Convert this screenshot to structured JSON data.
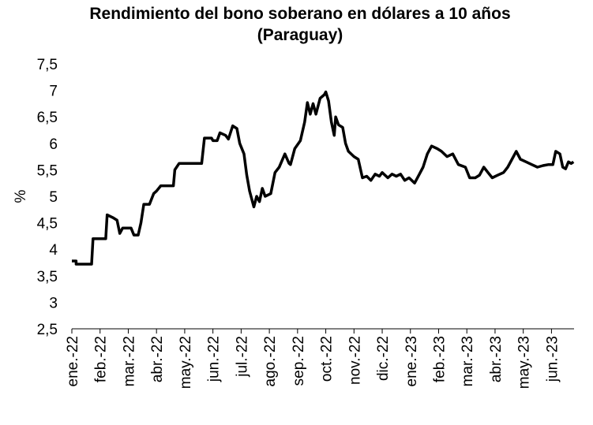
{
  "chart_data": {
    "type": "line",
    "title": [
      "Rendimiento del bono soberano en dólares a 10 años",
      "(Paraguay)"
    ],
    "y_label": "%",
    "color": "#000000",
    "x": [
      0,
      0.15,
      0.15,
      0.7,
      0.75,
      1.2,
      1.25,
      1.45,
      1.6,
      1.7,
      1.8,
      2.1,
      2.2,
      2.35,
      2.45,
      2.55,
      2.75,
      2.9,
      3.0,
      3.15,
      3.6,
      3.65,
      3.8,
      4.6,
      4.7,
      4.95,
      5.0,
      5.15,
      5.25,
      5.45,
      5.55,
      5.7,
      5.85,
      5.95,
      6.1,
      6.2,
      6.3,
      6.45,
      6.55,
      6.65,
      6.75,
      6.85,
      7.05,
      7.2,
      7.35,
      7.55,
      7.7,
      7.75,
      7.9,
      8.1,
      8.25,
      8.35,
      8.45,
      8.55,
      8.65,
      8.8,
      8.95,
      9.0,
      9.1,
      9.2,
      9.3,
      9.35,
      9.45,
      9.6,
      9.7,
      9.8,
      10.0,
      10.15,
      10.3,
      10.45,
      10.6,
      10.75,
      10.9,
      11.0,
      11.2,
      11.35,
      11.5,
      11.65,
      11.8,
      11.95,
      12.15,
      12.3,
      12.45,
      12.6,
      12.75,
      12.95,
      13.1,
      13.3,
      13.5,
      13.7,
      13.95,
      14.1,
      14.3,
      14.45,
      14.6,
      14.75,
      14.9,
      15.1,
      15.3,
      15.45,
      15.6,
      15.75,
      15.9,
      16.1,
      16.3,
      16.5,
      16.7,
      16.9,
      17.05,
      17.15,
      17.3,
      17.4,
      17.5,
      17.6,
      17.7,
      17.78
    ],
    "values": [
      3.78,
      3.78,
      3.72,
      3.72,
      4.2,
      4.2,
      4.65,
      4.6,
      4.55,
      4.3,
      4.4,
      4.4,
      4.27,
      4.27,
      4.5,
      4.85,
      4.85,
      5.05,
      5.1,
      5.2,
      5.2,
      5.5,
      5.62,
      5.62,
      6.1,
      6.1,
      6.05,
      6.05,
      6.2,
      6.15,
      6.08,
      6.33,
      6.28,
      6.0,
      5.8,
      5.4,
      5.1,
      4.8,
      5.0,
      4.9,
      5.15,
      5.0,
      5.05,
      5.45,
      5.55,
      5.8,
      5.62,
      5.6,
      5.9,
      6.05,
      6.4,
      6.77,
      6.55,
      6.75,
      6.55,
      6.85,
      6.92,
      6.97,
      6.8,
      6.4,
      6.15,
      6.5,
      6.35,
      6.3,
      6.0,
      5.85,
      5.75,
      5.7,
      5.35,
      5.38,
      5.3,
      5.42,
      5.38,
      5.45,
      5.35,
      5.42,
      5.38,
      5.42,
      5.3,
      5.35,
      5.25,
      5.4,
      5.55,
      5.8,
      5.95,
      5.9,
      5.85,
      5.75,
      5.8,
      5.6,
      5.55,
      5.35,
      5.35,
      5.4,
      5.55,
      5.45,
      5.35,
      5.4,
      5.45,
      5.55,
      5.7,
      5.85,
      5.7,
      5.65,
      5.6,
      5.55,
      5.58,
      5.6,
      5.6,
      5.85,
      5.8,
      5.55,
      5.52,
      5.65,
      5.62,
      5.65
    ],
    "xlim": [
      0,
      17.8
    ],
    "xticks": [
      {
        "value": 0,
        "label": "ene.-22"
      },
      {
        "value": 1,
        "label": "feb.-22"
      },
      {
        "value": 2,
        "label": "mar.-22"
      },
      {
        "value": 3,
        "label": "abr.-22"
      },
      {
        "value": 4,
        "label": "may.-22"
      },
      {
        "value": 5,
        "label": "jun.-22"
      },
      {
        "value": 6,
        "label": "jul.-22"
      },
      {
        "value": 7,
        "label": "ago.-22"
      },
      {
        "value": 8,
        "label": "sep.-22"
      },
      {
        "value": 9,
        "label": "oct.-22"
      },
      {
        "value": 10,
        "label": "nov.-22"
      },
      {
        "value": 11,
        "label": "dic.-22"
      },
      {
        "value": 12,
        "label": "ene.-23"
      },
      {
        "value": 13,
        "label": "feb.-23"
      },
      {
        "value": 14,
        "label": "mar.-23"
      },
      {
        "value": 15,
        "label": "abr.-23"
      },
      {
        "value": 16,
        "label": "may.-23"
      },
      {
        "value": 17,
        "label": "jun.-23"
      }
    ],
    "ylim": [
      2.5,
      7.5
    ],
    "yticks": [
      {
        "value": 2.5,
        "label": "2,5"
      },
      3,
      {
        "value": 3.5,
        "label": "3,5"
      },
      4,
      {
        "value": 4.5,
        "label": "4,5"
      },
      5,
      {
        "value": 5.5,
        "label": "5,5"
      },
      6,
      {
        "value": 6.5,
        "label": "6,5"
      },
      7,
      {
        "value": 7.5,
        "label": "7,5"
      }
    ]
  }
}
